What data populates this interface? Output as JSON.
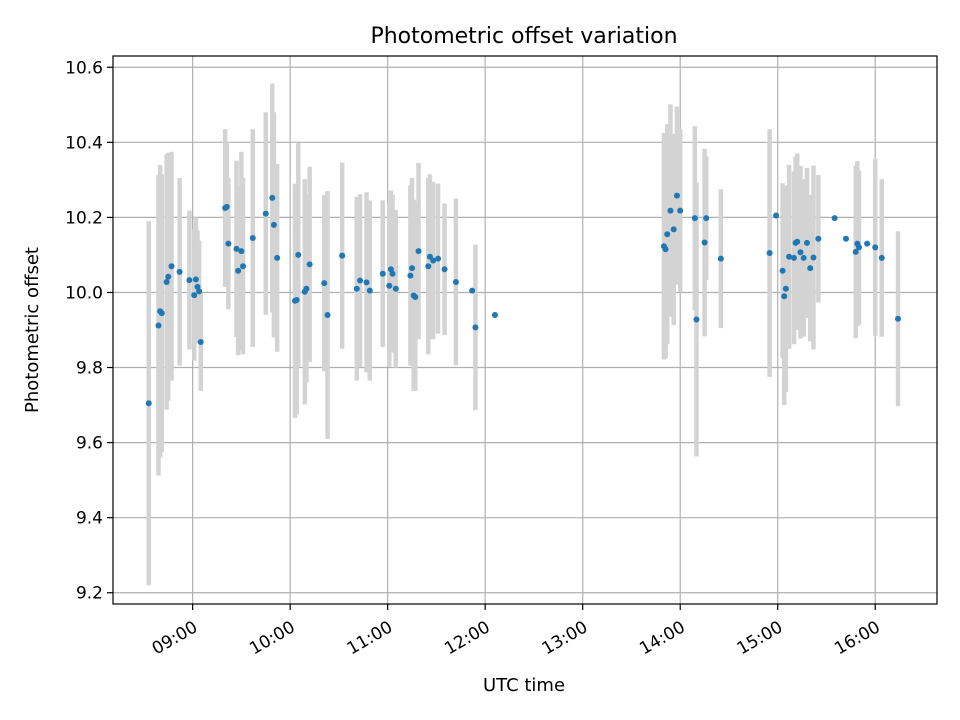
{
  "chart_data": {
    "type": "scatter",
    "title": "Photometric offset variation",
    "xlabel": "UTC time",
    "ylabel": "Photometric offset",
    "xlim": [
      "08:11",
      "16:38"
    ],
    "ylim": [
      9.17,
      10.63
    ],
    "xticks": [
      "09:00",
      "10:00",
      "11:00",
      "12:00",
      "13:00",
      "14:00",
      "15:00",
      "16:00"
    ],
    "yticks": [
      "9.2",
      "9.4",
      "9.6",
      "9.8",
      "10.0",
      "10.2",
      "10.4",
      "10.6"
    ],
    "grid": true,
    "colors": {
      "points": "#1f77b4",
      "errorbars": "#d3d3d3",
      "grid": "#b0b0b0"
    },
    "series": [
      {
        "x": [
          "08:33",
          "08:39",
          "08:40",
          "08:41",
          "08:44",
          "08:45",
          "08:47",
          "08:52",
          "08:58",
          "09:01",
          "09:02",
          "09:03",
          "09:04",
          "09:05",
          "09:20",
          "09:21",
          "09:22",
          "09:27",
          "09:28",
          "09:30",
          "09:31",
          "09:37",
          "09:45",
          "09:49",
          "09:50",
          "09:52",
          "10:03",
          "10:04",
          "10:05",
          "10:09",
          "10:10",
          "10:12",
          "10:21",
          "10:23",
          "10:32",
          "10:41",
          "10:43",
          "10:47",
          "10:49",
          "10:57",
          "11:01",
          "11:02",
          "11:03",
          "11:05",
          "11:14",
          "11:15",
          "11:16",
          "11:17",
          "11:19",
          "11:25",
          "11:26",
          "11:28",
          "11:31",
          "11:35",
          "11:42",
          "11:52",
          "11:54",
          "12:06",
          "13:50",
          "13:51",
          "13:52",
          "13:54",
          "13:56",
          "13:58",
          "14:00",
          "14:09",
          "14:10",
          "14:15",
          "14:16",
          "14:25",
          "14:55",
          "14:59",
          "15:03",
          "15:04",
          "15:05",
          "15:07",
          "15:10",
          "15:11",
          "15:12",
          "15:14",
          "15:16",
          "15:18",
          "15:20",
          "15:22",
          "15:25",
          "15:35",
          "15:42",
          "15:48",
          "15:49",
          "15:50",
          "15:55",
          "16:00",
          "16:04",
          "16:14"
        ],
        "y": [
          9.705,
          9.912,
          9.95,
          9.945,
          10.028,
          10.042,
          10.07,
          10.055,
          10.033,
          9.993,
          10.035,
          10.015,
          10.003,
          9.868,
          10.225,
          10.228,
          10.13,
          10.116,
          10.058,
          10.11,
          10.07,
          10.145,
          10.21,
          10.252,
          10.18,
          10.092,
          9.978,
          9.98,
          10.1,
          10.002,
          10.01,
          10.075,
          10.025,
          9.94,
          10.098,
          10.01,
          10.032,
          10.027,
          10.005,
          10.05,
          10.018,
          10.062,
          10.05,
          10.01,
          10.045,
          10.065,
          9.992,
          9.988,
          10.11,
          10.07,
          10.095,
          10.085,
          10.09,
          10.062,
          10.028,
          10.005,
          9.907,
          9.94,
          10.123,
          10.115,
          10.155,
          10.218,
          10.168,
          10.258,
          10.218,
          10.198,
          9.928,
          10.133,
          10.198,
          10.09,
          10.105,
          10.205,
          10.058,
          9.99,
          10.01,
          10.095,
          10.092,
          10.132,
          10.135,
          10.107,
          10.092,
          10.132,
          10.065,
          10.093,
          10.143,
          10.198,
          10.143,
          10.108,
          10.13,
          10.12,
          10.13,
          10.12,
          10.092,
          9.93
        ],
        "yerr": [
          0.485,
          0.4,
          0.39,
          0.37,
          0.34,
          0.33,
          0.305,
          0.25,
          0.185,
          0.175,
          0.165,
          0.15,
          0.135,
          0.13,
          0.21,
          0.175,
          0.175,
          0.235,
          0.225,
          0.265,
          0.235,
          0.29,
          0.27,
          0.305,
          0.3,
          0.25,
          0.312,
          0.305,
          0.298,
          0.3,
          0.25,
          0.26,
          0.235,
          0.33,
          0.248,
          0.245,
          0.23,
          0.24,
          0.24,
          0.195,
          0.215,
          0.21,
          0.21,
          0.21,
          0.24,
          0.24,
          0.255,
          0.25,
          0.235,
          0.235,
          0.22,
          0.21,
          0.2,
          0.175,
          0.222,
          0.0,
          0.22,
          0.0,
          0.302,
          0.29,
          0.293,
          0.283,
          0.255,
          0.237,
          0.217,
          0.245,
          0.365,
          0.25,
          0.165,
          0.185,
          0.33,
          0.0,
          0.233,
          0.29,
          0.275,
          0.245,
          0.23,
          0.23,
          0.235,
          0.23,
          0.21,
          0.2,
          0.195,
          0.245,
          0.17,
          0.0,
          0.0,
          0.23,
          0.22,
          0.205,
          0.0,
          0.235,
          0.21,
          0.233
        ]
      }
    ]
  }
}
